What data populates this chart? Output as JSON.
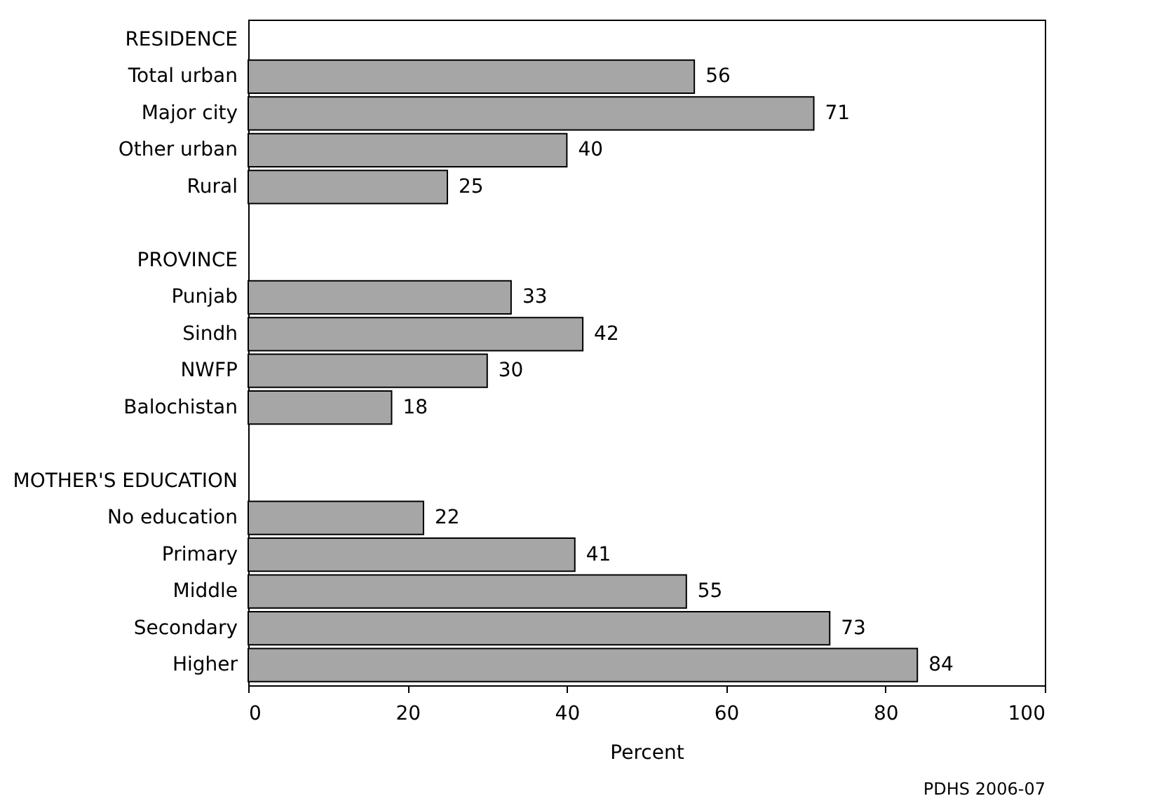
{
  "chart_data": {
    "type": "bar",
    "orientation": "horizontal",
    "xlabel": "Percent",
    "categories": [
      "RESIDENCE",
      "Total urban",
      "Major city",
      "Other urban",
      "Rural",
      null,
      "PROVINCE",
      "Punjab",
      "Sindh",
      "NWFP",
      "Balochistan",
      null,
      "MOTHER'S EDUCATION",
      "No education",
      "Primary",
      "Middle",
      "Secondary",
      "Higher"
    ],
    "values": [
      null,
      56,
      71,
      40,
      25,
      null,
      null,
      33,
      42,
      30,
      18,
      null,
      null,
      22,
      41,
      55,
      73,
      84
    ],
    "color": "#a6a6a6",
    "xlim": [
      0,
      100
    ],
    "xticks": [
      0,
      20,
      40,
      60,
      80,
      100
    ],
    "grid": false,
    "data_labels": true,
    "annotations": [
      "PDHS 2006-07"
    ]
  }
}
